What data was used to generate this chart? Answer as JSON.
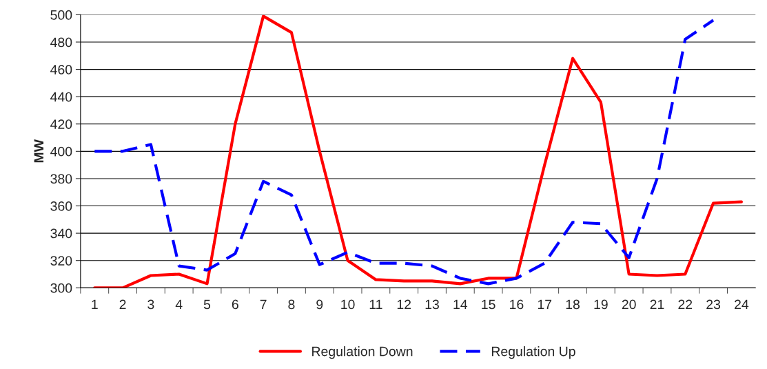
{
  "chart_data": {
    "type": "line",
    "ylabel": "MW",
    "categories": [
      "1",
      "2",
      "3",
      "4",
      "5",
      "6",
      "7",
      "8",
      "9",
      "10",
      "11",
      "12",
      "13",
      "14",
      "15",
      "16",
      "17",
      "18",
      "19",
      "20",
      "21",
      "22",
      "23",
      "24"
    ],
    "series": [
      {
        "name": "Regulation Down",
        "color": "#ff0000",
        "line_style": "solid",
        "values": [
          300,
          300,
          309,
          310,
          303,
          420,
          499,
          487,
          400,
          320,
          306,
          305,
          305,
          303,
          307,
          307,
          390,
          468,
          436,
          310,
          309,
          310,
          362,
          363
        ]
      },
      {
        "name": "Regulation Up",
        "color": "#0000ff",
        "line_style": "dashed",
        "values": [
          400,
          400,
          405,
          316,
          313,
          325,
          378,
          368,
          317,
          326,
          318,
          318,
          316,
          307,
          303,
          307,
          318,
          348,
          347,
          322,
          380,
          482,
          496,
          null
        ]
      }
    ],
    "ylim": [
      300,
      500
    ],
    "yticks": [
      300,
      320,
      340,
      360,
      380,
      400,
      420,
      440,
      460,
      480,
      500
    ],
    "grid": "y",
    "legend": "bottom",
    "marker": "none"
  }
}
